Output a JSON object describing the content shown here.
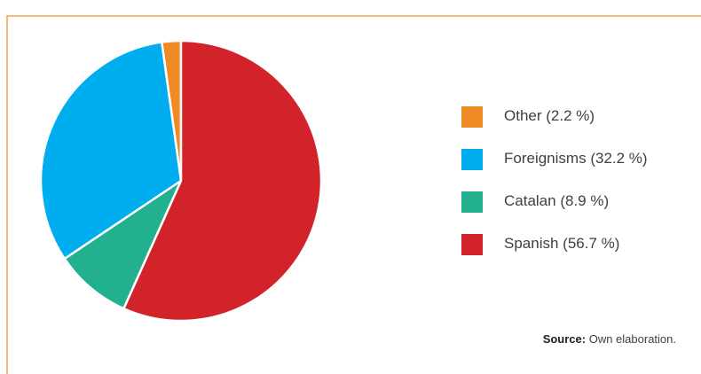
{
  "chart_data": {
    "type": "pie",
    "categories": [
      "Other",
      "Foreignisms",
      "Catalan",
      "Spanish"
    ],
    "values": [
      2.2,
      32.2,
      8.9,
      56.7
    ],
    "value_labels": [
      "2.2 %",
      "32.2 %",
      "8.9 %",
      "56.7 %"
    ],
    "colors": [
      "#f08a24",
      "#00aeef",
      "#22b08f",
      "#d2232a"
    ],
    "source_label": "Source:",
    "source": "Own elaboration."
  }
}
